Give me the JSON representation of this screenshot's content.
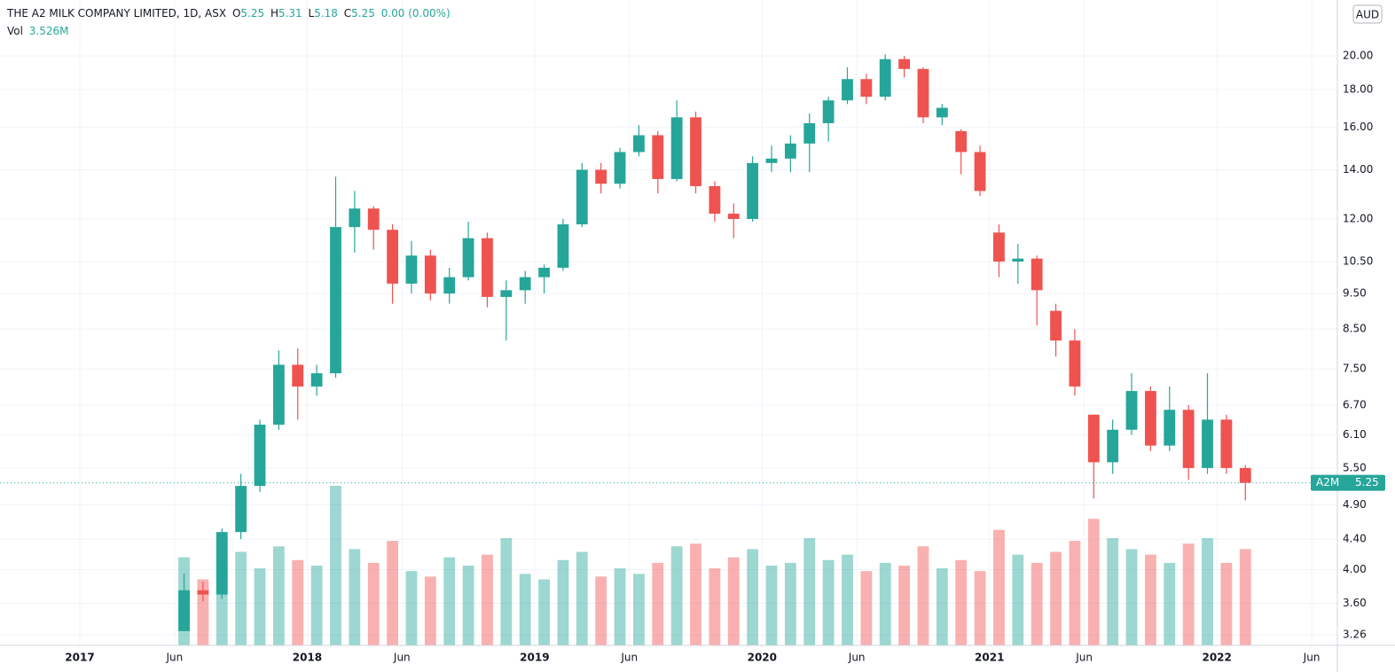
{
  "header": {
    "symbol": "THE A2 MILK COMPANY LIMITED, 1D, ASX",
    "o_label": "O",
    "o": "5.25",
    "h_label": "H",
    "h": "5.31",
    "l_label": "L",
    "l": "5.18",
    "c_label": "C",
    "c": "5.25",
    "change": "0.00 (0.00%)",
    "vol_label": "Vol",
    "vol": "3.526M",
    "currency": "AUD"
  },
  "chart_data": {
    "type": "candlestick",
    "ticker": "A2M",
    "last_price": 5.25,
    "last_price_label": "5.25",
    "log_scale": true,
    "grid": true,
    "up_color": "#26a69a",
    "down_color": "#ef5350",
    "x": [
      "2017-06",
      "2017-07",
      "2017-08",
      "2017-09",
      "2017-10",
      "2017-11",
      "2017-12",
      "2018-01",
      "2018-02",
      "2018-03",
      "2018-04",
      "2018-05",
      "2018-06",
      "2018-07",
      "2018-08",
      "2018-09",
      "2018-10",
      "2018-11",
      "2018-12",
      "2019-01",
      "2019-02",
      "2019-03",
      "2019-04",
      "2019-05",
      "2019-06",
      "2019-07",
      "2019-08",
      "2019-09",
      "2019-10",
      "2019-11",
      "2019-12",
      "2020-01",
      "2020-02",
      "2020-03",
      "2020-04",
      "2020-05",
      "2020-06",
      "2020-07",
      "2020-08",
      "2020-09",
      "2020-10",
      "2020-11",
      "2020-12",
      "2021-01",
      "2021-02",
      "2021-03",
      "2021-04",
      "2021-05",
      "2021-06",
      "2021-07",
      "2021-08",
      "2021-09",
      "2021-10",
      "2021-11",
      "2021-12",
      "2022-01",
      "2022-02"
    ],
    "open": [
      3.3,
      3.75,
      3.7,
      4.5,
      5.2,
      6.3,
      7.6,
      7.1,
      7.4,
      11.7,
      12.4,
      11.6,
      9.8,
      10.7,
      9.5,
      10.0,
      11.3,
      9.4,
      9.6,
      10.0,
      10.3,
      11.8,
      14.0,
      13.4,
      14.8,
      15.6,
      13.6,
      16.5,
      13.3,
      12.2,
      12.0,
      14.3,
      14.5,
      15.2,
      16.2,
      17.4,
      18.6,
      17.6,
      19.8,
      19.2,
      16.5,
      15.8,
      14.8,
      11.5,
      10.5,
      10.6,
      9.0,
      8.2,
      6.5,
      5.6,
      6.2,
      7.0,
      5.9,
      6.6,
      5.5,
      6.4,
      5.5
    ],
    "high": [
      3.95,
      3.85,
      4.55,
      5.4,
      6.4,
      7.95,
      8.0,
      7.6,
      13.7,
      13.1,
      12.5,
      11.8,
      11.2,
      10.9,
      10.3,
      11.9,
      11.5,
      9.9,
      10.2,
      10.4,
      12.0,
      14.3,
      14.3,
      15.0,
      16.1,
      15.8,
      17.4,
      16.8,
      13.5,
      12.6,
      14.6,
      15.1,
      15.6,
      16.7,
      17.6,
      19.3,
      18.9,
      20.1,
      20.0,
      19.3,
      17.2,
      15.9,
      15.1,
      11.8,
      11.1,
      10.7,
      9.2,
      8.5,
      6.5,
      6.4,
      7.4,
      7.1,
      7.1,
      6.7,
      7.4,
      6.5,
      5.55
    ],
    "low": [
      3.3,
      3.62,
      3.65,
      4.4,
      5.1,
      6.2,
      6.4,
      6.9,
      7.3,
      10.8,
      10.9,
      9.2,
      9.5,
      9.3,
      9.2,
      9.9,
      9.1,
      8.2,
      9.2,
      9.5,
      10.2,
      11.7,
      13.0,
      13.2,
      14.6,
      13.0,
      13.5,
      13.0,
      11.9,
      11.3,
      11.9,
      13.9,
      13.9,
      13.9,
      15.3,
      17.2,
      17.2,
      17.4,
      18.7,
      16.2,
      16.1,
      13.8,
      12.9,
      10.0,
      9.8,
      8.6,
      7.8,
      6.9,
      5.0,
      5.4,
      6.1,
      5.8,
      5.8,
      5.3,
      5.4,
      5.4,
      4.97
    ],
    "close": [
      3.75,
      3.7,
      4.5,
      5.2,
      6.3,
      7.6,
      7.1,
      7.4,
      11.7,
      12.4,
      11.6,
      9.8,
      10.7,
      9.5,
      10.0,
      11.3,
      9.4,
      9.6,
      10.0,
      10.3,
      11.8,
      14.0,
      13.4,
      14.8,
      15.6,
      13.6,
      16.5,
      13.3,
      12.2,
      12.0,
      14.3,
      14.5,
      15.2,
      16.2,
      17.4,
      18.6,
      17.6,
      19.8,
      19.2,
      16.5,
      17.0,
      14.8,
      13.1,
      10.5,
      10.6,
      9.6,
      8.2,
      7.1,
      5.6,
      6.2,
      7.0,
      5.9,
      6.6,
      5.5,
      6.4,
      5.5,
      5.25
    ],
    "volume": [
      3.2,
      2.4,
      3.0,
      3.4,
      2.8,
      3.6,
      3.1,
      2.9,
      5.8,
      3.5,
      3.0,
      3.8,
      2.7,
      2.5,
      3.2,
      2.9,
      3.3,
      3.9,
      2.6,
      2.4,
      3.1,
      3.4,
      2.5,
      2.8,
      2.6,
      3.0,
      3.6,
      3.7,
      2.8,
      3.2,
      3.5,
      2.9,
      3.0,
      3.9,
      3.1,
      3.3,
      2.7,
      3.0,
      2.9,
      3.6,
      2.8,
      3.1,
      2.7,
      4.2,
      3.3,
      3.0,
      3.4,
      3.8,
      4.6,
      3.9,
      3.5,
      3.3,
      3.0,
      3.7,
      3.9,
      3.0,
      3.5
    ],
    "ylim": [
      3.155,
      23.83
    ],
    "yticks": [
      {
        "value": 3.26,
        "label": "3.26"
      },
      {
        "value": 3.6,
        "label": "3.60"
      },
      {
        "value": 4.0,
        "label": "4.00"
      },
      {
        "value": 4.4,
        "label": "4.40"
      },
      {
        "value": 4.9,
        "label": "4.90"
      },
      {
        "value": 5.5,
        "label": "5.50"
      },
      {
        "value": 6.1,
        "label": "6.10"
      },
      {
        "value": 6.7,
        "label": "6.70"
      },
      {
        "value": 7.5,
        "label": "7.50"
      },
      {
        "value": 8.5,
        "label": "8.50"
      },
      {
        "value": 9.5,
        "label": "9.50"
      },
      {
        "value": 10.5,
        "label": "10.50"
      },
      {
        "value": 12.0,
        "label": "12.00"
      },
      {
        "value": 14.0,
        "label": "14.00"
      },
      {
        "value": 16.0,
        "label": "16.00"
      },
      {
        "value": 18.0,
        "label": "18.00"
      },
      {
        "value": 20.0,
        "label": "20.00"
      }
    ],
    "xticks": [
      {
        "value": "2017-01",
        "label": "2017"
      },
      {
        "value": "2017-06",
        "label": "Jun"
      },
      {
        "value": "2018-01",
        "label": "2018"
      },
      {
        "value": "2018-06",
        "label": "Jun"
      },
      {
        "value": "2019-01",
        "label": "2019"
      },
      {
        "value": "2019-06",
        "label": "Jun"
      },
      {
        "value": "2020-01",
        "label": "2020"
      },
      {
        "value": "2020-06",
        "label": "Jun"
      },
      {
        "value": "2021-01",
        "label": "2021"
      },
      {
        "value": "2021-06",
        "label": "Jun"
      },
      {
        "value": "2022-01",
        "label": "2022"
      },
      {
        "value": "2022-06",
        "label": "Jun"
      }
    ]
  }
}
